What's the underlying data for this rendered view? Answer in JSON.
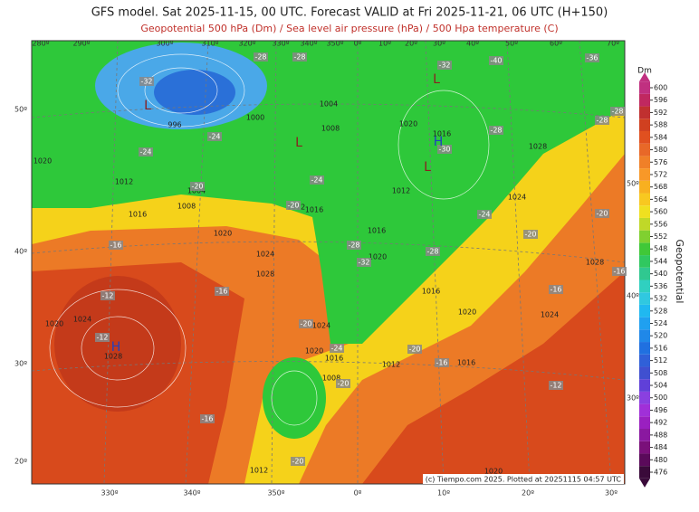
{
  "header": {
    "title": "GFS model. Sat 2025-11-15, 00 UTC. Forecast VALID at Fri 2025-11-21, 06 UTC (H+150)",
    "subtitle": "Geopotential 500 hPa (Dm) / Sea level air pressure (hPa) / 500 Hpa temperature (C)"
  },
  "map": {
    "longitude_top": [
      "280º",
      "290º",
      "300º",
      "310º",
      "320º",
      "330º",
      "340º",
      "350º",
      "0º",
      "10º",
      "20º",
      "30º",
      "40º",
      "50º",
      "60º",
      "70º"
    ],
    "longitude_bottom": [
      "330º",
      "340º",
      "350º",
      "0º",
      "10º",
      "20º",
      "30º"
    ],
    "latitude_left": [
      "50º",
      "40º",
      "30º",
      "20º"
    ],
    "latitude_right": [
      "50º",
      "40º",
      "30º"
    ],
    "isobars": [
      996,
      1000,
      1004,
      1008,
      1020,
      1012,
      1004,
      1008,
      1016,
      1012,
      1016,
      1020,
      1024,
      1028,
      1016,
      1020,
      1020,
      1016,
      1012,
      1028,
      1024,
      1016,
      1020,
      1024,
      1028,
      1020,
      1024,
      1028,
      1024,
      1020,
      1016,
      1008,
      1012,
      1016,
      1012,
      1020
    ],
    "temperatures": [
      -32,
      -28,
      -28,
      -40,
      -36,
      -32,
      -28,
      -24,
      -28,
      -24,
      -28,
      -30,
      -24,
      -20,
      -20,
      -24,
      -20,
      -16,
      -28,
      -32,
      -28,
      -20,
      -16,
      -12,
      -16,
      -16,
      -20,
      -24,
      -20,
      -16,
      -12,
      -20,
      -16,
      -20,
      -12
    ],
    "centers": [
      "L",
      "L",
      "L",
      "H",
      "L",
      "H"
    ],
    "credit": "(c) Tiempo.com 2025. Plotted at 20251115 04:57 UTC"
  },
  "colorbar": {
    "unit": "Dm",
    "label": "Geopotential",
    "ticks": [
      476,
      480,
      484,
      488,
      492,
      496,
      500,
      504,
      508,
      512,
      516,
      520,
      524,
      528,
      532,
      536,
      540,
      544,
      548,
      552,
      556,
      560,
      564,
      568,
      572,
      576,
      580,
      584,
      588,
      592,
      596,
      600
    ],
    "colors": [
      "#3a0a3a",
      "#5a0a5a",
      "#7a107a",
      "#8a18a0",
      "#9a20c0",
      "#a030d8",
      "#8a40e0",
      "#6040d8",
      "#4050d0",
      "#3060d8",
      "#2070e0",
      "#2088e8",
      "#20a0f0",
      "#20b8f0",
      "#30c8e0",
      "#30d0c0",
      "#30c890",
      "#30c860",
      "#40c838",
      "#80d030",
      "#c0d828",
      "#f0e020",
      "#f8c820",
      "#f8b020",
      "#f89828",
      "#f08028",
      "#e86828",
      "#e05020",
      "#d04020",
      "#c03030",
      "#c02860",
      "#c03080"
    ]
  }
}
